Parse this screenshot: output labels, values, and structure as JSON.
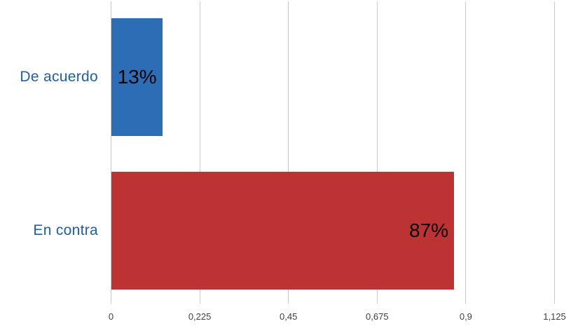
{
  "chart_data": {
    "type": "bar",
    "orientation": "horizontal",
    "title": "",
    "xlabel": "",
    "ylabel": "",
    "categories": [
      "De acuerdo",
      "En contra"
    ],
    "values": [
      0.13,
      0.87
    ],
    "value_labels": [
      "13%",
      "87%"
    ],
    "x_ticks": [
      {
        "value": 0,
        "label": "0"
      },
      {
        "value": 0.225,
        "label": "0,225"
      },
      {
        "value": 0.45,
        "label": "0,45"
      },
      {
        "value": 0.675,
        "label": "0,675"
      },
      {
        "value": 0.9,
        "label": "0,9"
      },
      {
        "value": 1.125,
        "label": "1,125"
      }
    ],
    "xlim": [
      0,
      1.125
    ],
    "grid": "vertical",
    "legend": "none",
    "colors": {
      "bars": [
        "#2D6DB5",
        "#BD3334"
      ],
      "category_label": "#1E5FA6",
      "value_label": "#000000",
      "tick_label": "#3F3F3F",
      "gridline": "#C9C9C9",
      "background": "#FFFFFF"
    }
  }
}
